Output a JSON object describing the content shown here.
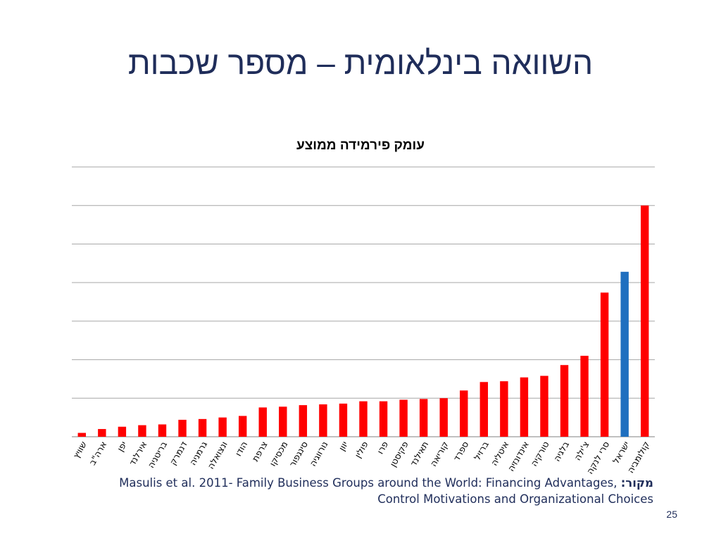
{
  "slide": {
    "title": "השוואה בינלאומית – מספר שכבות",
    "source_label": "מקור:",
    "source_text": "Masulis et al. 2011- Family Business Groups around the World: Financing Advantages, Control Motivations and Organizational Choices",
    "page_number": "25"
  },
  "chart_data": {
    "type": "bar",
    "title": "עומק פירמידה ממוצע",
    "xlabel": "",
    "ylabel": "",
    "ylim": [
      0,
      3.5
    ],
    "grid": true,
    "categories": [
      "שוויץ",
      "ארה\"ב",
      "יפן",
      "אירלנד",
      "בריטניה",
      "דנמרק",
      "גרמניה",
      "ונצואלה",
      "הודו",
      "צרפת",
      "מכסיקו",
      "סינגפור",
      "נורווגיה",
      "יוון",
      "פולין",
      "פרו",
      "פקיסטן",
      "תאילנד",
      "קוריאה",
      "ספרד",
      "ברזיל",
      "איטליה",
      "אינדונזיה",
      "טורקיה",
      "בלגיה",
      "צ'ילה",
      "סרי לנקה",
      "ישראל",
      "קולומביה"
    ],
    "values": [
      0.05,
      0.1,
      0.13,
      0.15,
      0.16,
      0.22,
      0.23,
      0.25,
      0.27,
      0.38,
      0.39,
      0.41,
      0.42,
      0.43,
      0.46,
      0.46,
      0.48,
      0.49,
      0.5,
      0.6,
      0.71,
      0.72,
      0.77,
      0.79,
      0.93,
      1.05,
      1.87,
      2.14,
      3.0
    ],
    "colors": [
      "#ff0000",
      "#ff0000",
      "#ff0000",
      "#ff0000",
      "#ff0000",
      "#ff0000",
      "#ff0000",
      "#ff0000",
      "#ff0000",
      "#ff0000",
      "#ff0000",
      "#ff0000",
      "#ff0000",
      "#ff0000",
      "#ff0000",
      "#ff0000",
      "#ff0000",
      "#ff0000",
      "#ff0000",
      "#ff0000",
      "#ff0000",
      "#ff0000",
      "#ff0000",
      "#ff0000",
      "#ff0000",
      "#ff0000",
      "#ff0000",
      "#1f6fbf",
      "#ff0000"
    ]
  }
}
